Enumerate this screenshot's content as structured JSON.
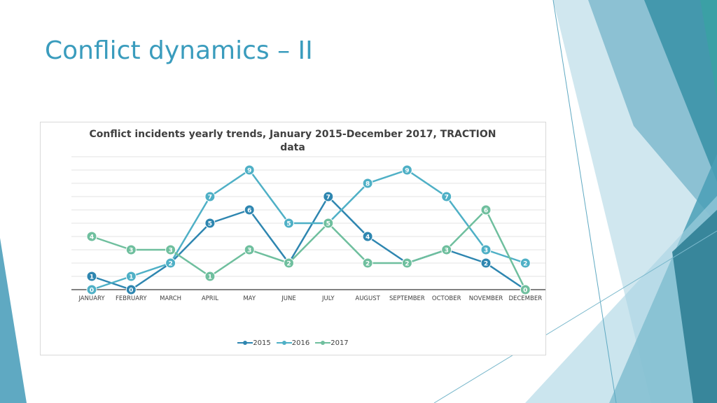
{
  "slide": {
    "title": "Conflict dynamics – II"
  },
  "theme": {
    "title_color": "#3a9cbd",
    "deco_colors": [
      "#2f7f95",
      "#3c94a8",
      "#7ab8cc",
      "#a9d3e2",
      "#5fa9c2"
    ]
  },
  "chart_data": {
    "type": "line",
    "title": "Conflict incidents yearly trends, January 2015-December 2017, TRACTION data",
    "xlabel": "",
    "ylabel": "",
    "ylim": [
      0,
      10
    ],
    "grid": true,
    "legend_position": "bottom",
    "categories": [
      "JANUARY",
      "FEBRUARY",
      "MARCH",
      "APRIL",
      "MAY",
      "JUNE",
      "JULY",
      "AUGUST",
      "SEPTEMBER",
      "OCTOBER",
      "NOVEMBER",
      "DECEMBER"
    ],
    "series": [
      {
        "name": "2015",
        "color": "#2e86b0",
        "values": [
          1,
          0,
          2,
          5,
          6,
          2,
          7,
          4,
          2,
          3,
          2,
          0
        ]
      },
      {
        "name": "2016",
        "color": "#4fb0c6",
        "values": [
          0,
          1,
          2,
          7,
          9,
          5,
          5,
          8,
          9,
          7,
          3,
          2
        ]
      },
      {
        "name": "2017",
        "color": "#6fbf9e",
        "values": [
          4,
          3,
          3,
          1,
          3,
          2,
          5,
          2,
          2,
          3,
          6,
          0
        ]
      }
    ]
  }
}
